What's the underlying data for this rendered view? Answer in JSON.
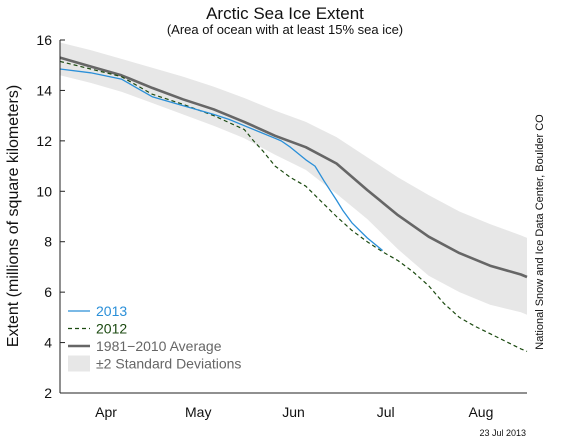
{
  "chart_data": {
    "type": "line",
    "title": "Arctic Sea Ice Extent",
    "subtitle": "(Area of ocean with at least 15% sea ice)",
    "xlabel": "",
    "ylabel": "Extent (millions of square kilometers)",
    "ylim": [
      2,
      16
    ],
    "yticks": [
      2,
      4,
      6,
      8,
      10,
      12,
      14,
      16
    ],
    "xticks": [
      {
        "day": 15,
        "label": "Apr"
      },
      {
        "day": 45,
        "label": "May"
      },
      {
        "day": 76,
        "label": "Jun"
      },
      {
        "day": 106,
        "label": "Jul"
      },
      {
        "day": 137,
        "label": "Aug"
      }
    ],
    "xlim": [
      0,
      152
    ],
    "grid": false,
    "legend_position": "bottom-left",
    "series": [
      {
        "name": "2013",
        "style": "solid",
        "color": "#2a8fd8",
        "x": [
          0,
          10,
          20,
          25,
          30,
          40,
          50,
          55,
          60,
          65,
          70,
          72,
          75,
          80,
          83,
          86,
          90,
          92,
          95,
          100,
          105
        ],
        "y": [
          14.85,
          14.7,
          14.45,
          14.1,
          13.75,
          13.4,
          13.05,
          12.85,
          12.6,
          12.35,
          12.1,
          12.0,
          11.75,
          11.25,
          11.0,
          10.4,
          9.65,
          9.25,
          8.75,
          8.15,
          7.65
        ]
      },
      {
        "name": "2012",
        "style": "dashed",
        "color": "#1b4a10",
        "x": [
          0,
          10,
          20,
          25,
          30,
          40,
          50,
          60,
          63,
          66,
          70,
          75,
          80,
          85,
          90,
          95,
          100,
          105,
          110,
          115,
          120,
          125,
          130,
          135,
          140,
          145,
          150,
          152
        ],
        "y": [
          15.15,
          14.85,
          14.55,
          14.2,
          13.85,
          13.45,
          13.0,
          12.45,
          12.0,
          11.6,
          11.0,
          10.55,
          10.2,
          9.6,
          9.0,
          8.45,
          8.0,
          7.6,
          7.25,
          6.8,
          6.25,
          5.55,
          5.0,
          4.65,
          4.35,
          4.05,
          3.75,
          3.65
        ]
      },
      {
        "name": "1981−2010 Average",
        "style": "solid",
        "color": "#666666",
        "x": [
          0,
          10,
          20,
          30,
          40,
          50,
          60,
          70,
          80,
          90,
          100,
          110,
          120,
          130,
          140,
          150,
          152
        ],
        "y": [
          15.3,
          14.95,
          14.6,
          14.1,
          13.65,
          13.25,
          12.75,
          12.2,
          11.75,
          11.1,
          10.05,
          9.05,
          8.2,
          7.55,
          7.05,
          6.7,
          6.6
        ]
      }
    ],
    "band": {
      "name": "±2 Standard Deviations",
      "color": "#e7e7e7",
      "x": [
        0,
        10,
        20,
        30,
        40,
        50,
        60,
        70,
        80,
        90,
        100,
        110,
        120,
        130,
        140,
        150,
        152
      ],
      "upper": [
        15.9,
        15.6,
        15.25,
        14.9,
        14.55,
        14.15,
        13.7,
        13.2,
        12.75,
        12.15,
        11.35,
        10.55,
        9.85,
        9.2,
        8.7,
        8.25,
        8.15
      ],
      "lower": [
        14.6,
        14.3,
        13.95,
        13.5,
        13.05,
        12.6,
        12.1,
        11.45,
        10.85,
        9.9,
        8.9,
        7.7,
        6.65,
        6.0,
        5.5,
        5.2,
        5.1
      ]
    }
  },
  "credit": "National Snow and Ice Data Center, Boulder CO",
  "date_stamp": "23 Jul 2013"
}
